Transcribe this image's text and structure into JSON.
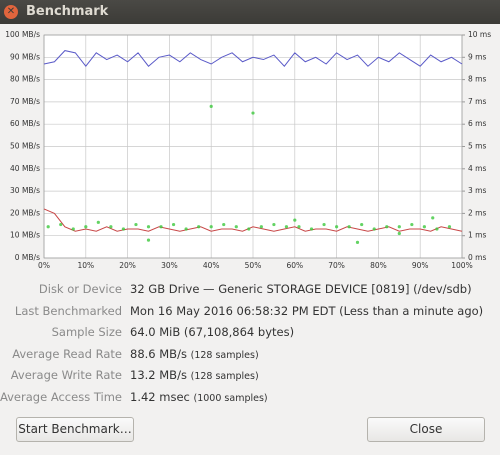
{
  "window": {
    "title": "Benchmark"
  },
  "chart_data": {
    "type": "line",
    "xlim": [
      0,
      100
    ],
    "xticks": [
      {
        "value": 0,
        "label": "0%"
      },
      {
        "value": 10,
        "label": "10%"
      },
      {
        "value": 20,
        "label": "20%"
      },
      {
        "value": 30,
        "label": "30%"
      },
      {
        "value": 40,
        "label": "40%"
      },
      {
        "value": 50,
        "label": "50%"
      },
      {
        "value": 60,
        "label": "60%"
      },
      {
        "value": 70,
        "label": "70%"
      },
      {
        "value": 80,
        "label": "80%"
      },
      {
        "value": 90,
        "label": "90%"
      },
      {
        "value": 100,
        "label": "100%"
      }
    ],
    "ylim": [
      0,
      100
    ],
    "yticks": [
      {
        "value": 0,
        "label": "0 MB/s"
      },
      {
        "value": 10,
        "label": "10 MB/s"
      },
      {
        "value": 20,
        "label": "20 MB/s"
      },
      {
        "value": 30,
        "label": "30 MB/s"
      },
      {
        "value": 40,
        "label": "40 MB/s"
      },
      {
        "value": 50,
        "label": "50 MB/s"
      },
      {
        "value": 60,
        "label": "60 MB/s"
      },
      {
        "value": 70,
        "label": "70 MB/s"
      },
      {
        "value": 80,
        "label": "80 MB/s"
      },
      {
        "value": 90,
        "label": "90 MB/s"
      },
      {
        "value": 100,
        "label": "100 MB/s"
      }
    ],
    "y2lim": [
      0,
      10
    ],
    "y2ticks": [
      {
        "value": 0,
        "label": "0 ms"
      },
      {
        "value": 1,
        "label": "1 ms"
      },
      {
        "value": 2,
        "label": "2 ms"
      },
      {
        "value": 3,
        "label": "3 ms"
      },
      {
        "value": 4,
        "label": "4 ms"
      },
      {
        "value": 5,
        "label": "5 ms"
      },
      {
        "value": 6,
        "label": "6 ms"
      },
      {
        "value": 7,
        "label": "7 ms"
      },
      {
        "value": 8,
        "label": "8 ms"
      },
      {
        "value": 9,
        "label": "9 ms"
      },
      {
        "value": 10,
        "label": "10 ms"
      }
    ],
    "grid": true,
    "series": [
      {
        "kind": "line",
        "color": "#5a5ac8",
        "x": [
          0,
          2.5,
          5,
          7.5,
          10,
          12.5,
          15,
          17.5,
          20,
          22.5,
          25,
          27.5,
          30,
          32.5,
          35,
          37.5,
          40,
          42.5,
          45,
          47.5,
          50,
          52.5,
          55,
          57.5,
          60,
          62.5,
          65,
          67.5,
          70,
          72.5,
          75,
          77.5,
          80,
          82.5,
          85,
          87.5,
          90,
          92.5,
          95,
          97.5,
          100
        ],
        "values": [
          87,
          88,
          93,
          92,
          86,
          92,
          89,
          91,
          88,
          92,
          86,
          90,
          91,
          88,
          92,
          89,
          87,
          90,
          92,
          88,
          90,
          89,
          91,
          86,
          92,
          88,
          90,
          87,
          92,
          89,
          91,
          86,
          90,
          88,
          92,
          89,
          86,
          91,
          88,
          90,
          87
        ]
      },
      {
        "kind": "line",
        "color": "#c84646",
        "x": [
          0,
          2.5,
          5,
          7.5,
          10,
          12.5,
          15,
          17.5,
          20,
          22.5,
          25,
          27.5,
          30,
          32.5,
          35,
          37.5,
          40,
          42.5,
          45,
          47.5,
          50,
          52.5,
          55,
          57.5,
          60,
          62.5,
          65,
          67.5,
          70,
          72.5,
          75,
          77.5,
          80,
          82.5,
          85,
          87.5,
          90,
          92.5,
          95,
          97.5,
          100
        ],
        "values": [
          22,
          20,
          14,
          12,
          13,
          12,
          14,
          12,
          13,
          13,
          12,
          14,
          13,
          12,
          13,
          14,
          12,
          13,
          13,
          12,
          14,
          13,
          12,
          13,
          14,
          12,
          13,
          13,
          12,
          14,
          13,
          12,
          13,
          14,
          12,
          13,
          13,
          12,
          14,
          13,
          12
        ]
      },
      {
        "kind": "scatter",
        "color": "#3cc83c",
        "axis": "y2",
        "x": [
          1,
          4,
          7,
          10,
          13,
          16,
          19,
          22,
          25,
          28,
          31,
          34,
          37,
          40,
          43,
          46,
          49,
          52,
          55,
          58,
          61,
          64,
          67,
          70,
          73,
          76,
          79,
          82,
          85,
          88,
          91,
          94,
          97,
          40,
          50,
          93,
          25,
          60,
          75,
          85
        ],
        "values": [
          1.4,
          1.5,
          1.3,
          1.4,
          1.6,
          1.4,
          1.3,
          1.5,
          1.4,
          1.4,
          1.5,
          1.3,
          1.4,
          1.4,
          1.5,
          1.4,
          1.3,
          1.4,
          1.5,
          1.4,
          1.4,
          1.3,
          1.5,
          1.4,
          1.4,
          1.5,
          1.3,
          1.4,
          1.4,
          1.5,
          1.4,
          1.3,
          1.4,
          6.8,
          6.5,
          1.8,
          0.8,
          1.7,
          0.7,
          1.1
        ]
      }
    ]
  },
  "info": [
    {
      "label": "Disk or Device",
      "value": "32 GB Drive — Generic STORAGE DEVICE [0819] (/dev/sdb)"
    },
    {
      "label": "Last Benchmarked",
      "value": "Mon 16 May 2016 06:58:32 PM EDT (Less than a minute ago)"
    },
    {
      "label": "Sample Size",
      "value": "64.0 MiB (67,108,864 bytes)"
    },
    {
      "label": "Average Read Rate",
      "value": "88.6 MB/s",
      "note": "(128 samples)"
    },
    {
      "label": "Average Write Rate",
      "value": "13.2 MB/s",
      "note": "(128 samples)"
    },
    {
      "label": "Average Access Time",
      "value": "1.42 msec",
      "note": "(1000 samples)"
    }
  ],
  "buttons": {
    "start": "Start Benchmark…",
    "close": "Close"
  }
}
